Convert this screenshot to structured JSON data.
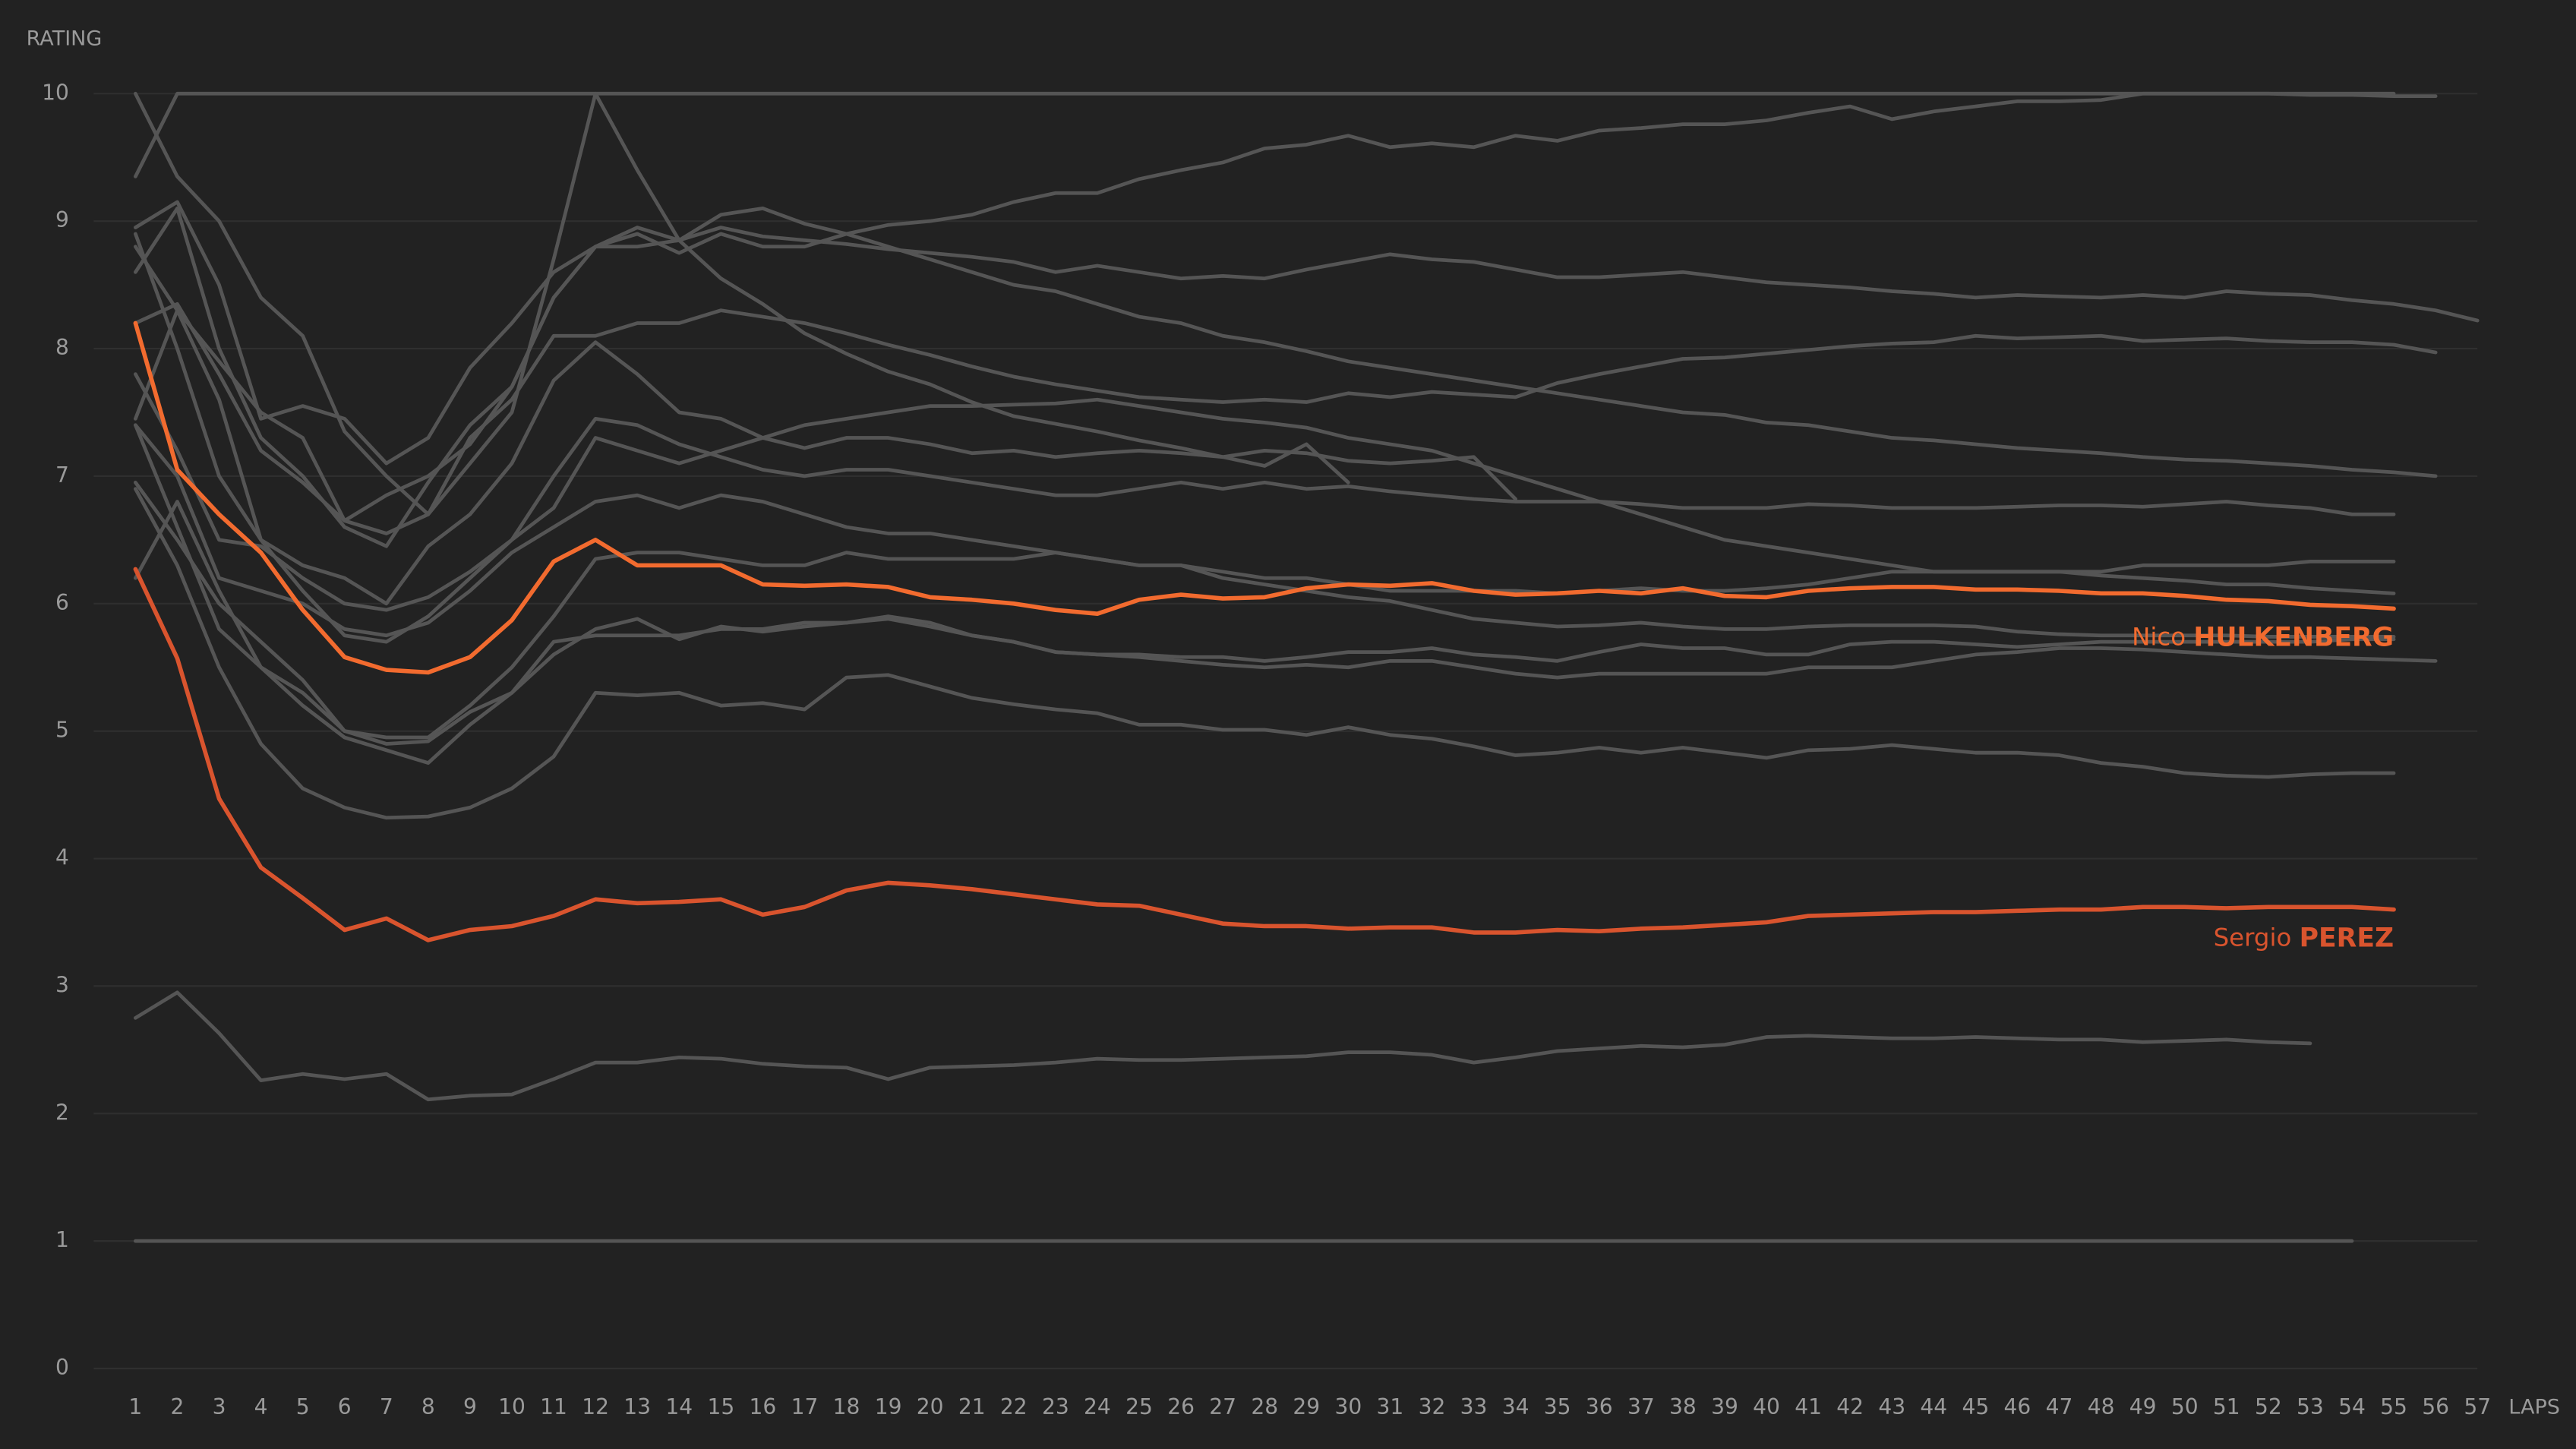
{
  "chart_data": {
    "type": "line",
    "y_label": "RATING",
    "x_label": "LAPS",
    "xlim": [
      0,
      57
    ],
    "ylim": [
      0,
      10
    ],
    "yticks": [
      0,
      1,
      2,
      3,
      4,
      5,
      6,
      7,
      8,
      9,
      10
    ],
    "xticks": [
      1,
      2,
      3,
      4,
      5,
      6,
      7,
      8,
      9,
      10,
      11,
      12,
      13,
      14,
      15,
      16,
      17,
      18,
      19,
      20,
      21,
      22,
      23,
      24,
      25,
      26,
      27,
      28,
      29,
      30,
      31,
      32,
      33,
      34,
      35,
      36,
      37,
      38,
      39,
      40,
      41,
      42,
      43,
      44,
      45,
      46,
      47,
      48,
      49,
      50,
      51,
      52,
      53,
      54,
      55,
      56,
      57
    ],
    "grid": true,
    "x": [
      1,
      2,
      3,
      4,
      5,
      6,
      7,
      8,
      9,
      10,
      11,
      12,
      13,
      14,
      15,
      16,
      17,
      18,
      19,
      20,
      21,
      22,
      23,
      24,
      25,
      26,
      27,
      28,
      29,
      30,
      31,
      32,
      33,
      34,
      35,
      36,
      37,
      38,
      39,
      40,
      41,
      42,
      43,
      44,
      45,
      46,
      47,
      48,
      49,
      50,
      51,
      52,
      53,
      54,
      55,
      56,
      57
    ],
    "series": [
      {
        "color": "#555555",
        "values": [
          9.35,
          10,
          10,
          10,
          10,
          10,
          10,
          10,
          10,
          10,
          10,
          10,
          10,
          10,
          10,
          10,
          10,
          10,
          10,
          10,
          10,
          10,
          10,
          10,
          10,
          10,
          10,
          10,
          10,
          10,
          10,
          10,
          10,
          10,
          10,
          10,
          10,
          10,
          10,
          10,
          10,
          10,
          10,
          10,
          10,
          10,
          10,
          10,
          10,
          10,
          10,
          10,
          10,
          10,
          10,
          null,
          null
        ]
      },
      {
        "color": "#555555",
        "values": [
          1,
          1,
          1,
          1,
          1,
          1,
          1,
          1,
          1,
          1,
          1,
          1,
          1,
          1,
          1,
          1,
          1,
          1,
          1,
          1,
          1,
          1,
          1,
          1,
          1,
          1,
          1,
          1,
          1,
          1,
          1,
          1,
          1,
          1,
          1,
          1,
          1,
          1,
          1,
          1,
          1,
          1,
          1,
          1,
          1,
          1,
          1,
          1,
          1,
          1,
          1,
          1,
          1,
          1,
          null,
          null,
          null
        ]
      },
      {
        "color": "#555555",
        "values": [
          2.75,
          2.95,
          2.63,
          2.26,
          2.31,
          2.27,
          2.31,
          2.11,
          2.14,
          2.15,
          2.27,
          2.4,
          2.4,
          2.44,
          2.43,
          2.39,
          2.37,
          2.36,
          2.27,
          2.36,
          2.37,
          2.38,
          2.4,
          2.43,
          2.42,
          2.42,
          2.43,
          2.44,
          2.45,
          2.48,
          2.48,
          2.46,
          2.4,
          2.44,
          2.49,
          2.51,
          2.53,
          2.52,
          2.54,
          2.6,
          2.61,
          2.6,
          2.59,
          2.59,
          2.6,
          2.59,
          2.58,
          2.58,
          2.56,
          2.57,
          2.58,
          2.56,
          2.55,
          null,
          null,
          null,
          null
        ]
      },
      {
        "color": "#555555",
        "values": [
          8.95,
          9.15,
          8.5,
          7.45,
          7.55,
          7.45,
          7.1,
          7.3,
          7.85,
          8.2,
          8.6,
          8.8,
          8.95,
          8.85,
          9.05,
          9.1,
          8.98,
          8.9,
          8.97,
          9.0,
          9.05,
          9.15,
          9.22,
          9.22,
          9.33,
          9.4,
          9.46,
          9.57,
          9.6,
          9.67,
          9.58,
          9.61,
          9.58,
          9.67,
          9.63,
          9.71,
          9.73,
          9.76,
          9.76,
          9.79,
          9.85,
          9.9,
          9.8,
          9.86,
          9.9,
          9.94,
          9.94,
          9.95,
          10,
          10,
          10,
          10,
          9.99,
          9.99,
          9.98,
          9.98,
          null
        ]
      },
      {
        "color": "#555555",
        "values": [
          8.6,
          9.1,
          8.0,
          7.3,
          7.0,
          6.6,
          6.45,
          6.95,
          7.4,
          7.7,
          8.4,
          8.8,
          8.8,
          8.85,
          8.95,
          8.88,
          8.85,
          8.82,
          8.78,
          8.75,
          8.72,
          8.68,
          8.6,
          8.65,
          8.6,
          8.55,
          8.57,
          8.55,
          8.62,
          8.68,
          8.74,
          8.7,
          8.68,
          8.62,
          8.56,
          8.56,
          8.58,
          8.6,
          8.56,
          8.52,
          8.5,
          8.48,
          8.45,
          8.43,
          8.4,
          8.42,
          8.41,
          8.4,
          8.42,
          8.4,
          8.45,
          8.43,
          8.42,
          8.38,
          8.35,
          8.3,
          8.22
        ]
      },
      {
        "color": "#555555",
        "values": [
          10,
          9.35,
          9.0,
          8.4,
          8.1,
          7.35,
          7.0,
          6.7,
          7.3,
          7.6,
          8.1,
          8.1,
          8.2,
          8.2,
          8.3,
          8.25,
          8.2,
          8.12,
          8.03,
          7.95,
          7.86,
          7.78,
          7.72,
          7.67,
          7.62,
          7.6,
          7.58,
          7.6,
          7.58,
          7.65,
          7.62,
          7.66,
          7.64,
          7.62,
          7.73,
          7.8,
          7.86,
          7.92,
          7.93,
          7.96,
          7.99,
          8.02,
          8.04,
          8.05,
          8.1,
          8.08,
          8.09,
          8.1,
          8.06,
          8.07,
          8.08,
          8.06,
          8.05,
          8.05,
          8.03,
          7.97,
          null
        ]
      },
      {
        "color": "#555555",
        "values": [
          8.2,
          8.35,
          7.8,
          7.2,
          6.95,
          6.65,
          6.55,
          6.7,
          7.1,
          7.5,
          8.7,
          10,
          9.4,
          8.85,
          8.55,
          8.35,
          8.12,
          7.96,
          7.82,
          7.72,
          7.58,
          7.47,
          7.41,
          7.35,
          7.28,
          7.22,
          7.15,
          7.08,
          7.25,
          6.95,
          null,
          null,
          null,
          null,
          null,
          null,
          null,
          null,
          null,
          null,
          null,
          null,
          null,
          null,
          null,
          null,
          null,
          null,
          null,
          null,
          null,
          null,
          null,
          null,
          null,
          null,
          null
        ]
      },
      {
        "color": "#555555",
        "values": [
          7.45,
          8.3,
          7.9,
          7.5,
          7.3,
          6.65,
          6.85,
          7.0,
          7.25,
          7.7,
          8.4,
          8.8,
          8.9,
          8.75,
          8.9,
          8.8,
          8.8,
          8.9,
          8.8,
          8.7,
          8.6,
          8.5,
          8.45,
          8.35,
          8.25,
          8.2,
          8.1,
          8.05,
          7.98,
          7.9,
          7.85,
          7.8,
          7.75,
          7.7,
          7.65,
          7.6,
          7.55,
          7.5,
          7.48,
          7.42,
          7.4,
          7.35,
          7.3,
          7.28,
          7.25,
          7.22,
          7.2,
          7.18,
          7.15,
          7.13,
          7.12,
          7.1,
          7.08,
          7.05,
          7.03,
          7.0,
          null
        ]
      },
      {
        "color": "#555555",
        "values": [
          7.8,
          7.2,
          6.5,
          6.45,
          6.2,
          6.0,
          5.95,
          6.05,
          6.25,
          6.5,
          7.0,
          7.45,
          7.4,
          7.25,
          7.15,
          7.05,
          7.0,
          7.05,
          7.05,
          7.0,
          6.95,
          6.9,
          6.85,
          6.85,
          6.9,
          6.95,
          6.9,
          6.95,
          6.9,
          6.92,
          6.88,
          6.85,
          6.82,
          6.8,
          6.8,
          6.8,
          6.78,
          6.75,
          6.75,
          6.75,
          6.78,
          6.77,
          6.75,
          6.75,
          6.75,
          6.76,
          6.77,
          6.77,
          6.76,
          6.78,
          6.8,
          6.77,
          6.75,
          6.7,
          6.7,
          null,
          null
        ]
      },
      {
        "color": "#555555",
        "values": [
          8.9,
          8.0,
          7.0,
          6.5,
          6.1,
          5.75,
          5.7,
          5.9,
          6.2,
          6.5,
          6.75,
          7.3,
          7.2,
          7.1,
          7.2,
          7.3,
          7.4,
          7.45,
          7.5,
          7.55,
          7.55,
          7.56,
          7.57,
          7.6,
          7.55,
          7.5,
          7.45,
          7.42,
          7.38,
          7.3,
          7.25,
          7.2,
          7.1,
          7.0,
          6.9,
          6.8,
          6.7,
          6.6,
          6.5,
          6.45,
          6.4,
          6.35,
          6.3,
          6.25,
          6.25,
          6.25,
          6.25,
          6.25,
          6.3,
          6.3,
          6.3,
          6.3,
          6.33,
          6.33,
          6.33,
          null,
          null
        ]
      },
      {
        "color": "#555555",
        "values": [
          7.4,
          7.0,
          6.2,
          6.1,
          6.0,
          5.8,
          5.75,
          5.85,
          6.1,
          6.4,
          6.6,
          6.8,
          6.85,
          6.75,
          6.85,
          6.8,
          6.7,
          6.6,
          6.55,
          6.55,
          6.5,
          6.45,
          6.4,
          6.35,
          6.3,
          6.3,
          6.25,
          6.2,
          6.2,
          6.15,
          6.1,
          6.1,
          6.1,
          6.1,
          6.08,
          6.1,
          6.12,
          6.1,
          6.1,
          6.12,
          6.15,
          6.2,
          6.25,
          6.25,
          6.25,
          6.25,
          6.25,
          6.22,
          6.2,
          6.18,
          6.15,
          6.15,
          6.12,
          6.1,
          6.08,
          null,
          null
        ]
      },
      {
        "color": "#555555",
        "values": [
          7.4,
          6.6,
          5.8,
          5.5,
          5.3,
          5.0,
          4.95,
          4.95,
          5.2,
          5.5,
          5.9,
          6.35,
          6.4,
          6.4,
          6.35,
          6.3,
          6.3,
          6.4,
          6.35,
          6.35,
          6.35,
          6.35,
          6.4,
          6.35,
          6.3,
          6.3,
          6.2,
          6.15,
          6.1,
          6.05,
          6.02,
          5.95,
          5.88,
          5.85,
          5.82,
          5.83,
          5.85,
          5.82,
          5.8,
          5.8,
          5.82,
          5.83,
          5.83,
          5.83,
          5.82,
          5.78,
          5.76,
          5.75,
          5.75,
          5.75,
          5.75,
          5.74,
          5.74,
          5.74,
          5.74,
          null,
          null
        ]
      },
      {
        "color": "#555555",
        "values": [
          6.2,
          6.8,
          6.1,
          5.5,
          5.2,
          4.95,
          4.85,
          4.75,
          5.05,
          5.3,
          5.7,
          5.75,
          5.75,
          5.75,
          5.8,
          5.8,
          5.85,
          5.85,
          5.9,
          5.85,
          5.75,
          5.7,
          5.62,
          5.6,
          5.58,
          5.55,
          5.52,
          5.5,
          5.52,
          5.5,
          5.55,
          5.55,
          5.5,
          5.45,
          5.42,
          5.45,
          5.45,
          5.45,
          5.45,
          5.45,
          5.5,
          5.5,
          5.5,
          5.55,
          5.6,
          5.62,
          5.65,
          5.65,
          5.64,
          5.62,
          5.6,
          5.58,
          5.58,
          5.57,
          5.56,
          5.55,
          null
        ]
      },
      {
        "color": "#555555",
        "values": [
          6.9,
          6.3,
          5.5,
          4.9,
          4.55,
          4.4,
          4.32,
          4.33,
          4.4,
          4.55,
          4.8,
          5.3,
          5.28,
          5.3,
          5.2,
          5.22,
          5.17,
          5.42,
          5.44,
          5.35,
          5.26,
          5.21,
          5.17,
          5.14,
          5.05,
          5.05,
          5.01,
          5.01,
          4.97,
          5.03,
          4.97,
          4.94,
          4.88,
          4.81,
          4.83,
          4.87,
          4.83,
          4.87,
          4.83,
          4.79,
          4.85,
          4.86,
          4.89,
          4.86,
          4.83,
          4.83,
          4.81,
          4.75,
          4.72,
          4.67,
          4.65,
          4.64,
          4.66,
          4.67,
          4.67,
          null,
          null
        ]
      },
      {
        "color": "#555555",
        "values": [
          6.95,
          6.5,
          6.0,
          5.7,
          5.4,
          5.0,
          4.9,
          4.92,
          5.15,
          5.3,
          5.6,
          5.8,
          5.88,
          5.72,
          5.82,
          5.78,
          5.82,
          5.85,
          5.88,
          5.82,
          5.75,
          5.7,
          5.62,
          5.6,
          5.6,
          5.58,
          5.58,
          5.55,
          5.58,
          5.62,
          5.62,
          5.65,
          5.6,
          5.58,
          5.55,
          5.62,
          5.68,
          5.65,
          5.65,
          5.6,
          5.6,
          5.68,
          5.7,
          5.7,
          5.68,
          5.66,
          5.68,
          5.7,
          5.7,
          5.7,
          5.7,
          5.7,
          5.7,
          5.72,
          5.72,
          null,
          null
        ]
      },
      {
        "color": "#555555",
        "values": [
          8.8,
          8.3,
          7.6,
          6.5,
          6.3,
          6.2,
          6.0,
          6.45,
          6.7,
          7.1,
          7.75,
          8.05,
          7.8,
          7.5,
          7.45,
          7.3,
          7.22,
          7.3,
          7.3,
          7.25,
          7.18,
          7.2,
          7.15,
          7.18,
          7.2,
          7.18,
          7.15,
          7.2,
          7.18,
          7.12,
          7.1,
          7.12,
          7.15,
          6.82,
          null,
          null,
          null,
          null,
          null,
          null,
          null,
          null,
          null,
          null,
          null,
          null,
          null,
          null,
          null,
          null,
          null,
          null,
          null,
          null,
          null,
          null,
          null
        ]
      },
      {
        "name": "Sergio PEREZ",
        "color": "#d9542e",
        "values": [
          6.27,
          5.57,
          4.47,
          3.93,
          3.69,
          3.44,
          3.53,
          3.36,
          3.44,
          3.47,
          3.55,
          3.68,
          3.65,
          3.66,
          3.68,
          3.56,
          3.62,
          3.75,
          3.81,
          3.79,
          3.76,
          3.72,
          3.68,
          3.64,
          3.63,
          3.56,
          3.49,
          3.47,
          3.47,
          3.45,
          3.46,
          3.46,
          3.42,
          3.42,
          3.44,
          3.43,
          3.45,
          3.46,
          3.48,
          3.5,
          3.55,
          3.56,
          3.57,
          3.58,
          3.58,
          3.59,
          3.6,
          3.6,
          3.62,
          3.62,
          3.61,
          3.62,
          3.62,
          3.62,
          3.6,
          null,
          null
        ]
      },
      {
        "name": "Nico HULKENBERG",
        "color": "#f26b2f",
        "values": [
          8.2,
          7.05,
          6.7,
          6.4,
          5.95,
          5.58,
          5.48,
          5.46,
          5.58,
          5.87,
          6.33,
          6.5,
          6.3,
          6.3,
          6.3,
          6.15,
          6.14,
          6.15,
          6.13,
          6.05,
          6.03,
          6.0,
          5.95,
          5.92,
          6.03,
          6.07,
          6.04,
          6.05,
          6.12,
          6.15,
          6.14,
          6.16,
          6.1,
          6.07,
          6.08,
          6.1,
          6.08,
          6.12,
          6.06,
          6.05,
          6.1,
          6.12,
          6.13,
          6.13,
          6.11,
          6.11,
          6.1,
          6.08,
          6.08,
          6.06,
          6.03,
          6.02,
          5.99,
          5.98,
          5.96,
          null,
          null
        ]
      }
    ]
  }
}
